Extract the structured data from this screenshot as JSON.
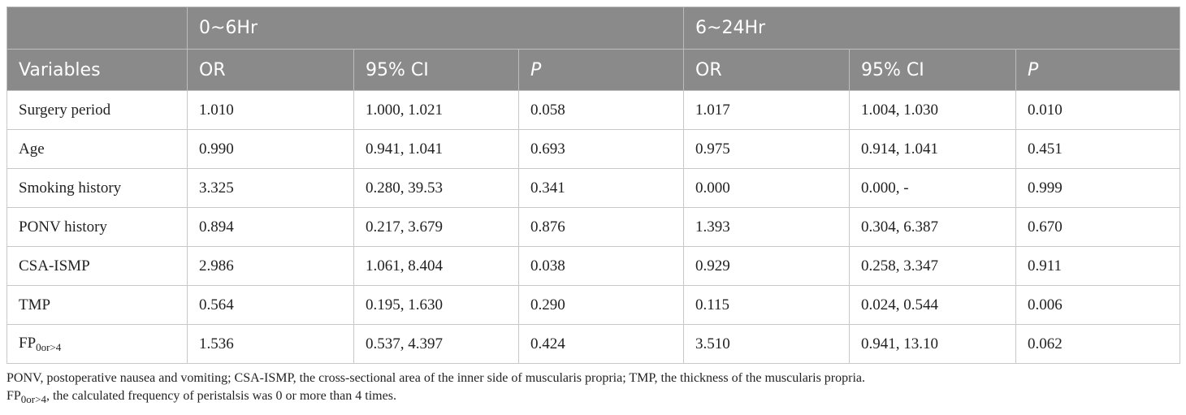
{
  "header": {
    "group1": "0~6Hr",
    "group2": "6~24Hr",
    "variables": "Variables",
    "or": "OR",
    "ci": "95% CI",
    "p": "P"
  },
  "rows": [
    {
      "variable": "Surgery period",
      "or1": "1.010",
      "ci1": "1.000, 1.021",
      "p1": "0.058",
      "or2": "1.017",
      "ci2": "1.004, 1.030",
      "p2": "0.010"
    },
    {
      "variable": "Age",
      "or1": "0.990",
      "ci1": "0.941, 1.041",
      "p1": "0.693",
      "or2": "0.975",
      "ci2": "0.914, 1.041",
      "p2": "0.451"
    },
    {
      "variable": "Smoking history",
      "or1": "3.325",
      "ci1": "0.280, 39.53",
      "p1": "0.341",
      "or2": "0.000",
      "ci2": "0.000, -",
      "p2": "0.999"
    },
    {
      "variable": "PONV history",
      "or1": "0.894",
      "ci1": "0.217, 3.679",
      "p1": "0.876",
      "or2": "1.393",
      "ci2": "0.304, 6.387",
      "p2": "0.670"
    },
    {
      "variable": "CSA-ISMP",
      "or1": "2.986",
      "ci1": "1.061, 8.404",
      "p1": "0.038",
      "or2": "0.929",
      "ci2": "0.258, 3.347",
      "p2": "0.911"
    },
    {
      "variable": "TMP",
      "or1": "0.564",
      "ci1": "0.195, 1.630",
      "p1": "0.290",
      "or2": "0.115",
      "ci2": "0.024, 0.544",
      "p2": "0.006"
    },
    {
      "variable_base": "FP",
      "variable_sub": "0or>4",
      "or1": "1.536",
      "ci1": "0.537, 4.397",
      "p1": "0.424",
      "or2": "3.510",
      "ci2": "0.941, 13.10",
      "p2": "0.062"
    }
  ],
  "notes": {
    "line1": "PONV, postoperative nausea and vomiting; CSA-ISMP, the cross-sectional area of the inner side of muscularis propria; TMP, the thickness of the muscularis propria.",
    "line2_base": "FP",
    "line2_sub": "0or>4",
    "line2_rest": ", the calculated frequency of peristalsis was 0 or more than 4 times."
  }
}
